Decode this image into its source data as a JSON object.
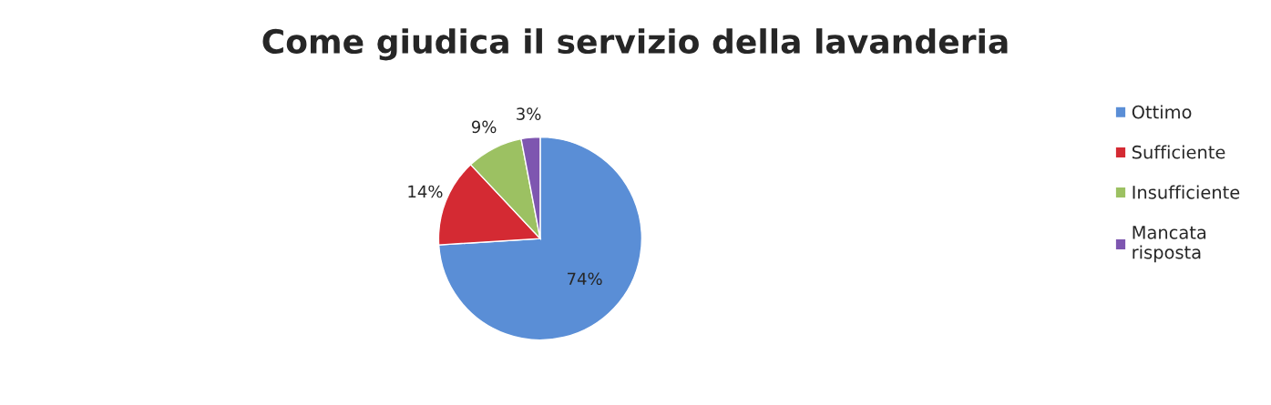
{
  "chart_data": {
    "type": "pie",
    "title": "Come giudica il servizio della lavanderia",
    "categories": [
      "Ottimo",
      "Sufficiente",
      "Insufficiente",
      "Mancata\nrisposta"
    ],
    "values": [
      74,
      14,
      9,
      3
    ],
    "colors": [
      "#5a8ed6",
      "#d42a33",
      "#9cc162",
      "#7e56b0"
    ],
    "value_labels": [
      "74%",
      "14%",
      "9%",
      "3%"
    ],
    "legend": "right"
  }
}
